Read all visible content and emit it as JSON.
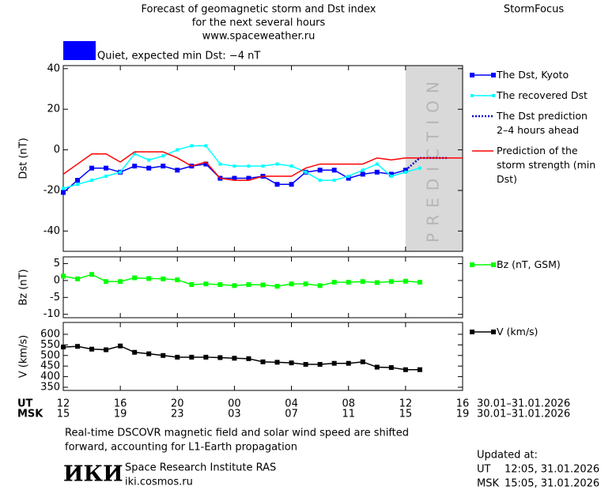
{
  "header": {
    "title_lines": [
      "Forecast of geomagnetic storm and Dst index",
      "for the next several hours",
      "www.spaceweather.ru"
    ],
    "brand": "StormFocus"
  },
  "status": {
    "color": "#0000ff",
    "text": "Quiet, expected min Dst: −4 nT"
  },
  "chart_data": [
    {
      "type": "line",
      "ylabel": "Dst (nT)",
      "ylim": [
        -50,
        41.5
      ],
      "yticks": [
        -40,
        -20,
        0,
        20,
        40
      ],
      "xlim": [
        0,
        28
      ],
      "x": [
        0,
        1,
        2,
        3,
        4,
        5,
        6,
        7,
        8,
        9,
        10,
        11,
        12,
        13,
        14,
        15,
        16,
        17,
        18,
        19,
        20,
        21,
        22,
        23,
        24,
        25,
        26,
        27,
        28
      ],
      "prediction_region": [
        24,
        28
      ],
      "prediction_label": "PREDICTION",
      "series": [
        {
          "name": "The Dst, Kyoto",
          "color": "#0000ff",
          "marker": "square",
          "values": [
            -21,
            -15,
            -9,
            -9,
            -11,
            -8,
            -9,
            -8,
            -10,
            -8,
            -7,
            -14,
            -14,
            -14,
            -13,
            -17,
            -17,
            -11,
            -10,
            -10,
            -14,
            -12,
            -11,
            -12,
            -10,
            null,
            null,
            null,
            null
          ]
        },
        {
          "name": "The recovered Dst",
          "color": "#00ffff",
          "marker": "small",
          "values": [
            -19,
            -17,
            -15,
            -13,
            -11,
            -2,
            -5,
            -3,
            0,
            2,
            2,
            -7,
            -8,
            -8,
            -8,
            -7,
            -8,
            -11,
            -15,
            -15,
            -13,
            -10,
            -7,
            -13,
            -11,
            -9,
            null,
            null,
            null
          ]
        },
        {
          "name": "The Dst prediction 2–4 hours ahead",
          "color": "#0000cc",
          "marker": "none",
          "style": "dotted",
          "values": [
            null,
            null,
            null,
            null,
            null,
            null,
            null,
            null,
            null,
            null,
            null,
            null,
            null,
            null,
            null,
            null,
            null,
            null,
            null,
            null,
            null,
            null,
            null,
            null,
            -10,
            -4,
            -4,
            -4,
            null
          ]
        },
        {
          "name": "Prediction of the storm strength (min Dst)",
          "color": "#ff0000",
          "marker": "none",
          "values": [
            -12,
            -7,
            -2,
            -2,
            -6,
            -1,
            -1,
            -1,
            -4,
            -8,
            -6,
            -14,
            -15,
            -15,
            -13,
            -13,
            -13,
            -9,
            -7,
            -7,
            -7,
            -7,
            -4,
            -5,
            -4,
            -4,
            -4,
            -4,
            -4
          ]
        }
      ]
    },
    {
      "type": "line",
      "ylabel": "Bz (nT)",
      "ylim": [
        -11,
        7
      ],
      "yticks": [
        -10,
        -5,
        0,
        5
      ],
      "xlim": [
        0,
        28
      ],
      "x": [
        0,
        1,
        2,
        3,
        4,
        5,
        6,
        7,
        8,
        9,
        10,
        11,
        12,
        13,
        14,
        15,
        16,
        17,
        18,
        19,
        20,
        21,
        22,
        23,
        24,
        25,
        26,
        27,
        28
      ],
      "series": [
        {
          "name": "Bz (nT, GSM)",
          "color": "#00ff00",
          "marker": "square",
          "values": [
            1.3,
            0.5,
            1.8,
            -0.3,
            -0.3,
            0.8,
            0.6,
            0.5,
            0.2,
            -1.2,
            -1.0,
            -1.2,
            -1.5,
            -1.2,
            -1.3,
            -1.7,
            -1.0,
            -1.0,
            -1.5,
            -0.5,
            -0.5,
            -0.3,
            -0.6,
            -0.3,
            -0.2,
            -0.5,
            null,
            null,
            null
          ]
        }
      ]
    },
    {
      "type": "line",
      "ylabel": "V (km/s)",
      "ylim": [
        335,
        656
      ],
      "yticks": [
        350,
        400,
        450,
        500,
        550,
        600
      ],
      "xlim": [
        0,
        28
      ],
      "x": [
        0,
        1,
        2,
        3,
        4,
        5,
        6,
        7,
        8,
        9,
        10,
        11,
        12,
        13,
        14,
        15,
        16,
        17,
        18,
        19,
        20,
        21,
        22,
        23,
        24,
        25,
        26,
        27,
        28
      ],
      "series": [
        {
          "name": "V (km/s)",
          "color": "#000000",
          "marker": "square",
          "values": [
            540,
            543,
            530,
            527,
            545,
            515,
            508,
            500,
            492,
            492,
            492,
            490,
            487,
            485,
            470,
            468,
            465,
            458,
            458,
            463,
            463,
            470,
            445,
            443,
            433,
            433,
            null,
            null,
            null
          ]
        }
      ],
      "xlabel": "UT",
      "xticks": [
        {
          "value": 0,
          "label": "12"
        },
        {
          "value": 4,
          "label": "16"
        },
        {
          "value": 8,
          "label": "20"
        },
        {
          "value": 12,
          "label": "00"
        },
        {
          "value": 16,
          "label": "04"
        },
        {
          "value": 20,
          "label": "08"
        },
        {
          "value": 24,
          "label": "12"
        },
        {
          "value": 28,
          "label": "16"
        }
      ],
      "x2label": "MSK",
      "x2ticks": [
        {
          "value": 0,
          "label": "15"
        },
        {
          "value": 4,
          "label": "19"
        },
        {
          "value": 8,
          "label": "23"
        },
        {
          "value": 12,
          "label": "03"
        },
        {
          "value": 16,
          "label": "07"
        },
        {
          "value": 20,
          "label": "11"
        },
        {
          "value": 24,
          "label": "15"
        },
        {
          "value": 28,
          "label": "19"
        }
      ],
      "date_range": "30.01–31.01.2026"
    }
  ],
  "footer": {
    "note_lines": [
      "Real-time DSCOVR magnetic field and solar wind speed are shifted",
      "forward, accounting for L1-Earth propagation"
    ],
    "logo": "ИКИ",
    "institute": "Space Research Institute RAS",
    "site": "iki.cosmos.ru",
    "updated_label": "Updated at:",
    "ut_label": "UT",
    "ut_time": "12:05, 31.01.2026",
    "msk_label": "MSK",
    "msk_time": "15:05, 31.01.2026"
  }
}
